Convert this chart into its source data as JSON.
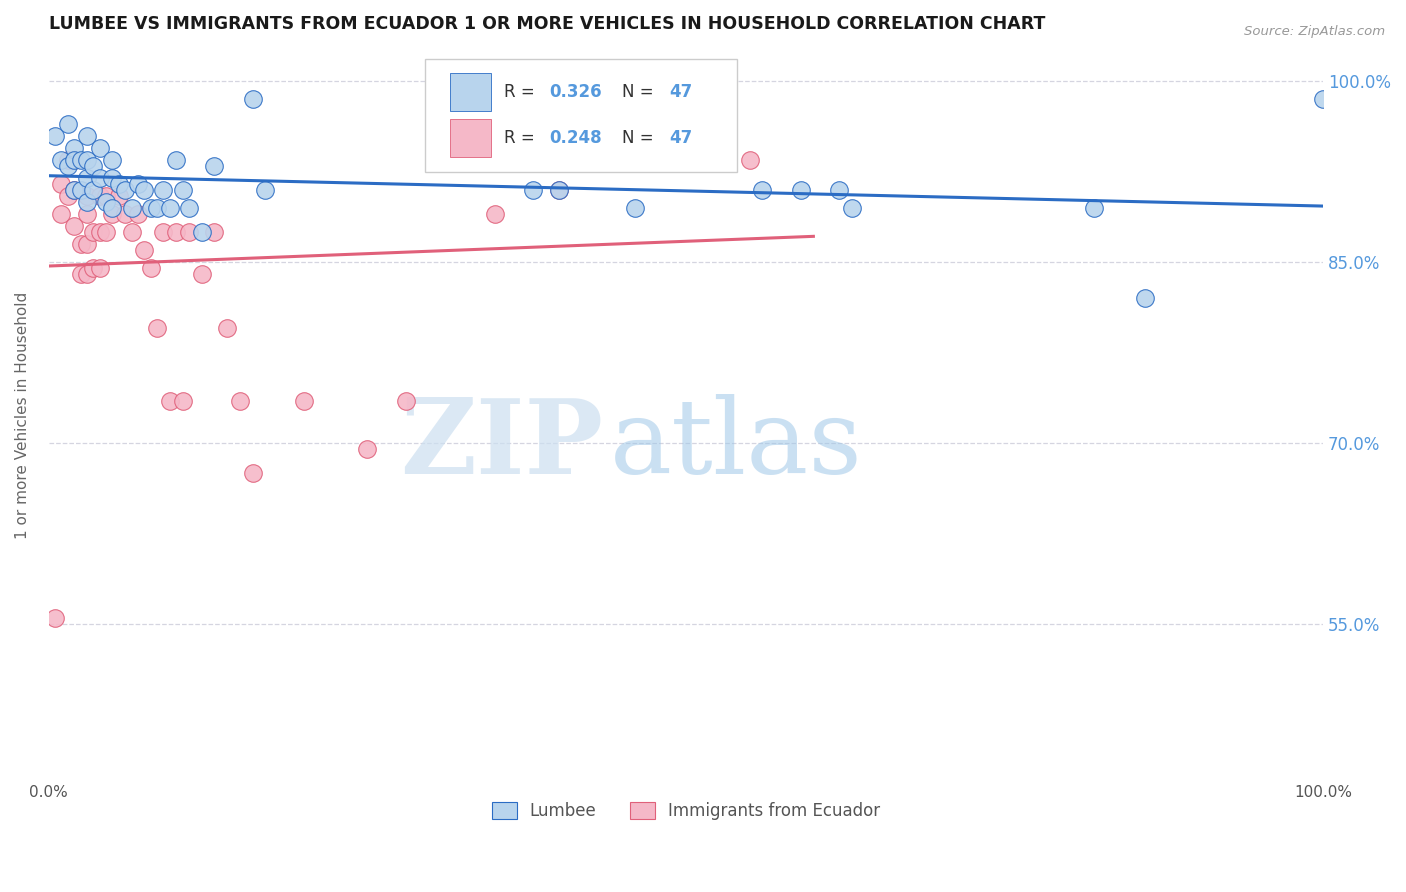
{
  "title": "LUMBEE VS IMMIGRANTS FROM ECUADOR 1 OR MORE VEHICLES IN HOUSEHOLD CORRELATION CHART",
  "source": "Source: ZipAtlas.com",
  "ylabel": "1 or more Vehicles in Household",
  "xlim": [
    0.0,
    1.0
  ],
  "ylim": [
    0.42,
    1.025
  ],
  "yticks": [
    0.55,
    0.7,
    0.85,
    1.0
  ],
  "ytick_labels": [
    "55.0%",
    "70.0%",
    "85.0%",
    "100.0%"
  ],
  "xticks": [
    0.0,
    0.1,
    0.2,
    0.3,
    0.4,
    0.5,
    0.6,
    0.7,
    0.8,
    0.9,
    1.0
  ],
  "xtick_labels": [
    "0.0%",
    "",
    "",
    "",
    "",
    "",
    "",
    "",
    "",
    "",
    "100.0%"
  ],
  "lumbee_color": "#b8d4ed",
  "ecuador_color": "#f5b8c8",
  "lumbee_line_color": "#2b6cc4",
  "ecuador_line_color": "#e0607a",
  "legend_labels": [
    "Lumbee",
    "Immigrants from Ecuador"
  ],
  "R_lumbee": "0.326",
  "N_lumbee": "47",
  "R_ecuador": "0.248",
  "N_ecuador": "47",
  "watermark_zip": "ZIP",
  "watermark_atlas": "atlas",
  "lumbee_x": [
    0.005,
    0.01,
    0.015,
    0.015,
    0.02,
    0.02,
    0.02,
    0.025,
    0.025,
    0.03,
    0.03,
    0.03,
    0.03,
    0.035,
    0.035,
    0.04,
    0.04,
    0.045,
    0.05,
    0.05,
    0.05,
    0.055,
    0.06,
    0.065,
    0.07,
    0.075,
    0.08,
    0.085,
    0.09,
    0.095,
    0.1,
    0.105,
    0.11,
    0.12,
    0.13,
    0.16,
    0.17,
    0.38,
    0.4,
    0.46,
    0.56,
    0.59,
    0.62,
    0.63,
    0.82,
    0.86,
    1.0
  ],
  "lumbee_y": [
    0.955,
    0.935,
    0.965,
    0.93,
    0.945,
    0.935,
    0.91,
    0.935,
    0.91,
    0.955,
    0.935,
    0.92,
    0.9,
    0.93,
    0.91,
    0.945,
    0.92,
    0.9,
    0.935,
    0.92,
    0.895,
    0.915,
    0.91,
    0.895,
    0.915,
    0.91,
    0.895,
    0.895,
    0.91,
    0.895,
    0.935,
    0.91,
    0.895,
    0.875,
    0.93,
    0.985,
    0.91,
    0.91,
    0.91,
    0.895,
    0.91,
    0.91,
    0.91,
    0.895,
    0.895,
    0.82,
    0.985
  ],
  "ecuador_x": [
    0.005,
    0.01,
    0.01,
    0.015,
    0.015,
    0.02,
    0.02,
    0.02,
    0.025,
    0.025,
    0.03,
    0.03,
    0.03,
    0.03,
    0.035,
    0.035,
    0.04,
    0.04,
    0.04,
    0.045,
    0.045,
    0.05,
    0.055,
    0.06,
    0.065,
    0.07,
    0.075,
    0.08,
    0.085,
    0.09,
    0.095,
    0.1,
    0.105,
    0.11,
    0.12,
    0.13,
    0.14,
    0.15,
    0.16,
    0.2,
    0.25,
    0.28,
    0.35,
    0.4,
    0.46,
    0.5,
    0.55
  ],
  "ecuador_y": [
    0.555,
    0.915,
    0.89,
    0.935,
    0.905,
    0.935,
    0.91,
    0.88,
    0.865,
    0.84,
    0.905,
    0.89,
    0.865,
    0.84,
    0.875,
    0.845,
    0.905,
    0.875,
    0.845,
    0.905,
    0.875,
    0.89,
    0.905,
    0.89,
    0.875,
    0.89,
    0.86,
    0.845,
    0.795,
    0.875,
    0.735,
    0.875,
    0.735,
    0.875,
    0.84,
    0.875,
    0.795,
    0.735,
    0.675,
    0.735,
    0.695,
    0.735,
    0.89,
    0.91,
    0.935,
    0.96,
    0.935
  ],
  "background_color": "#ffffff",
  "grid_color": "#d5d5e0",
  "title_color": "#1a1a1a",
  "axis_label_color": "#666666",
  "right_axis_color": "#5599dd",
  "tick_label_color": "#555555"
}
